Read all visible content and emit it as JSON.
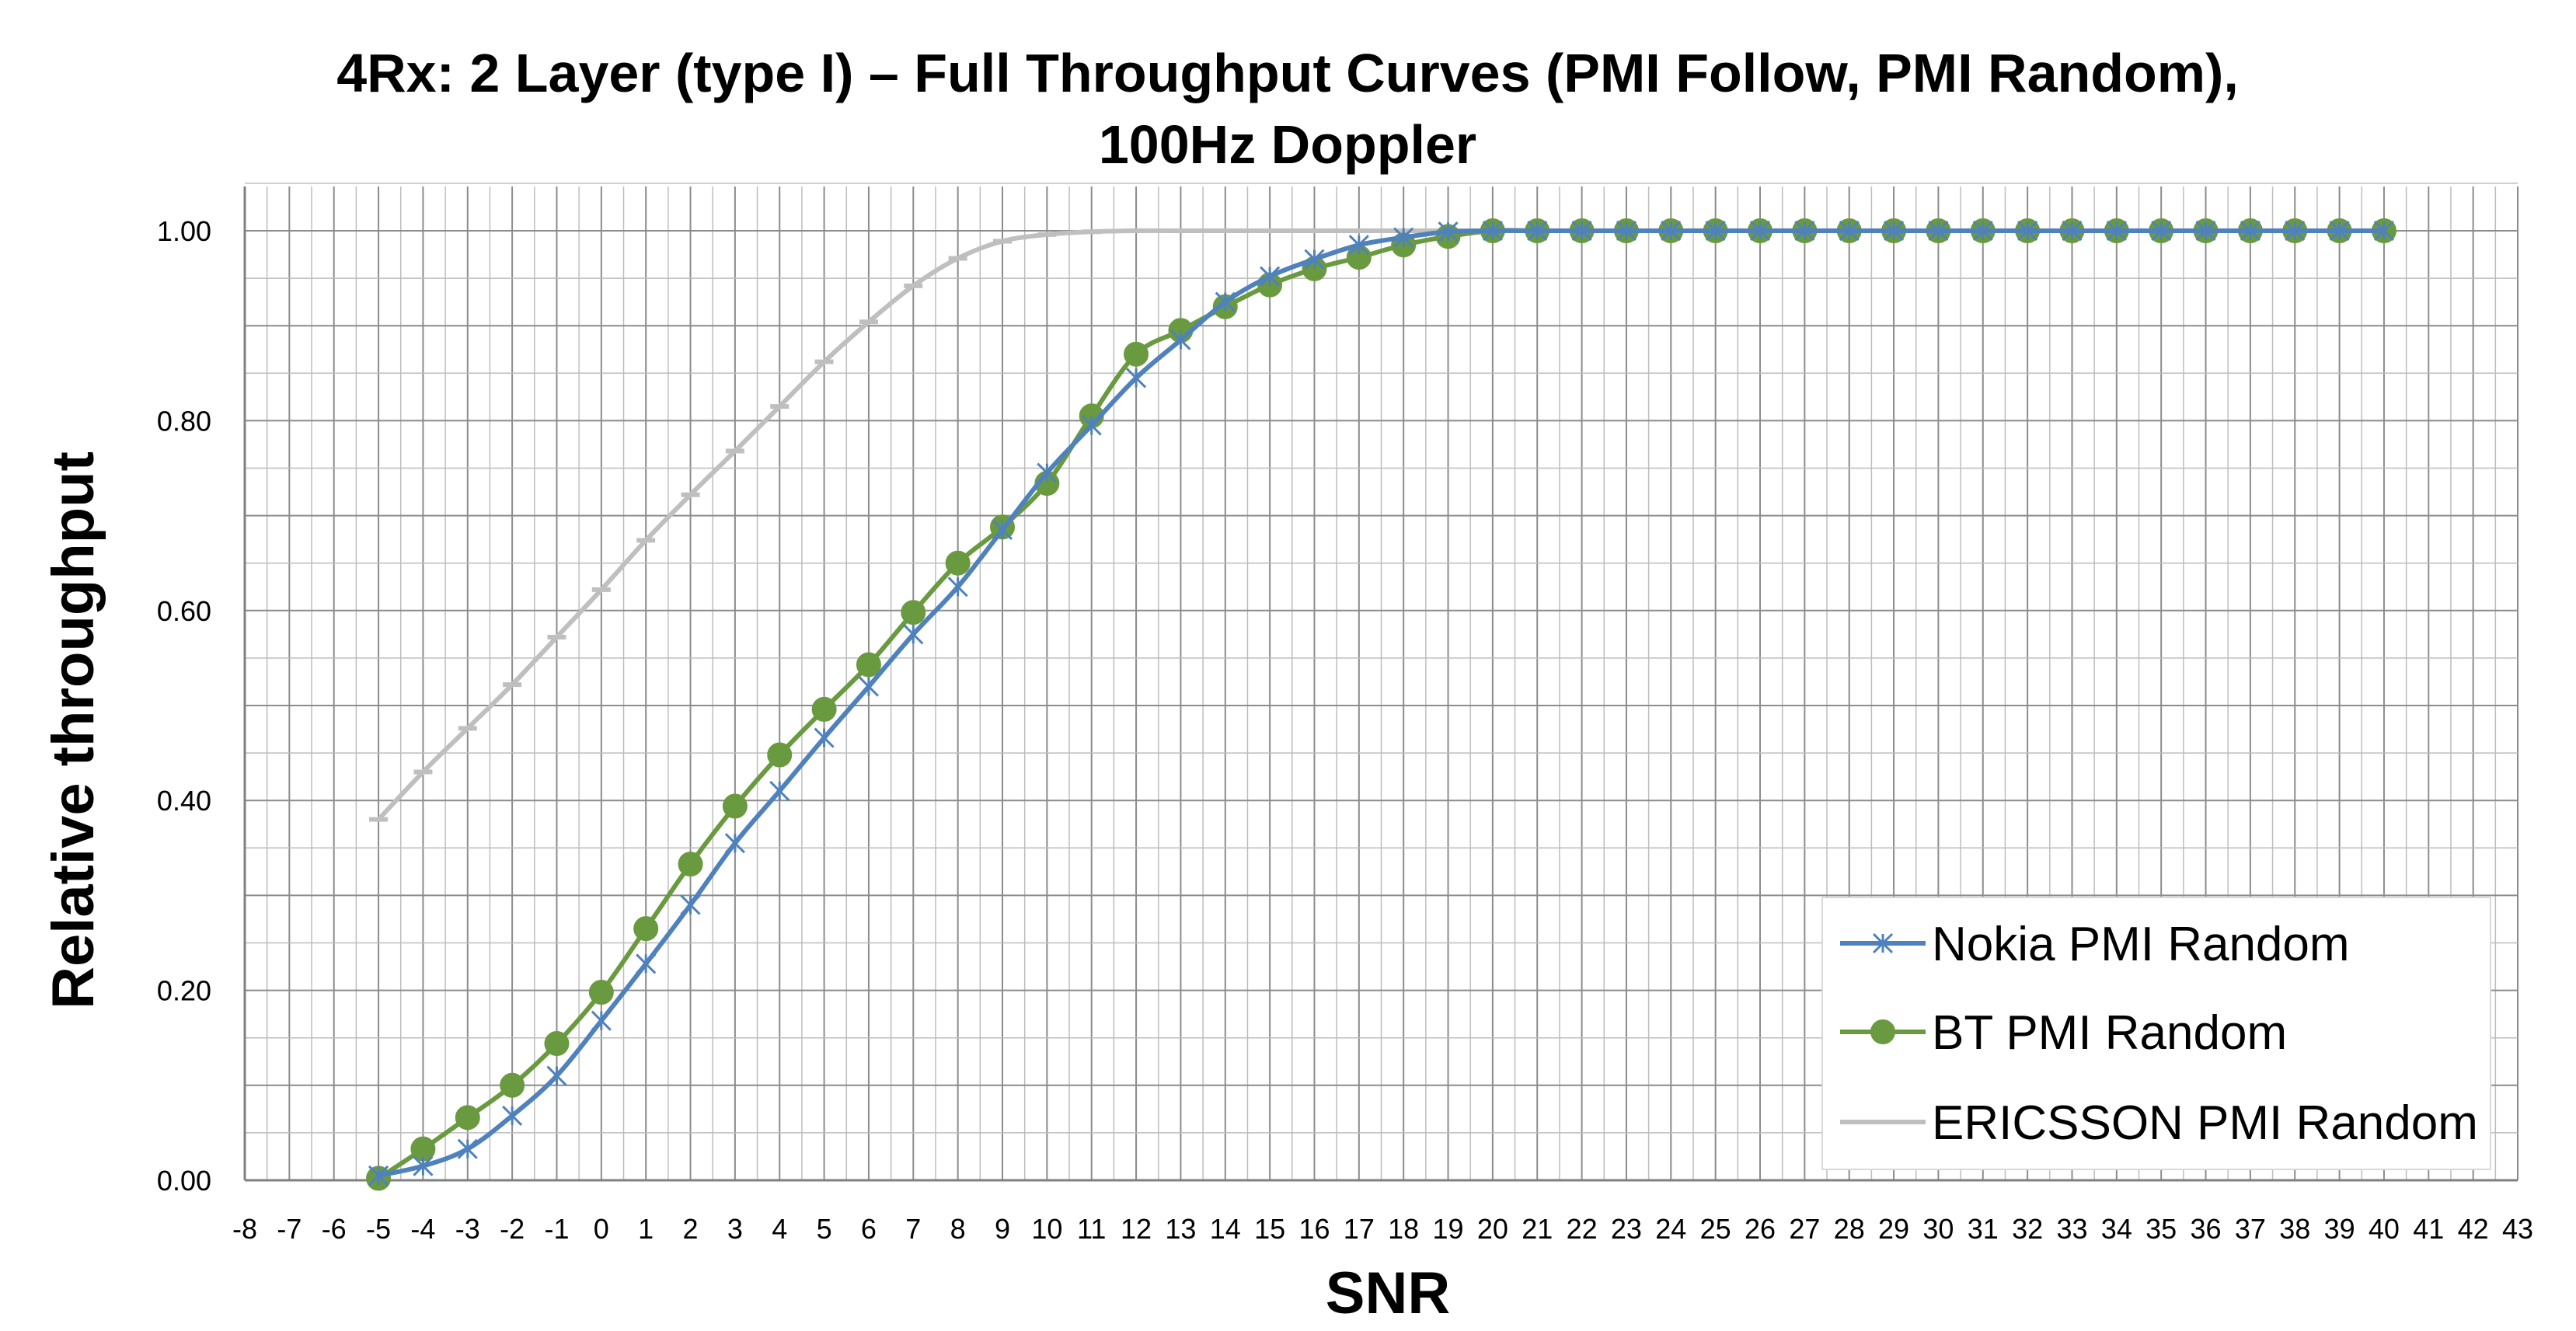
{
  "chart_data": {
    "type": "line",
    "title_lines": [
      "4Rx: 2 Layer (type I) – Full Throughput Curves (PMI Follow, PMI Random),",
      "100Hz Doppler"
    ],
    "xlabel": "SNR",
    "ylabel": "Relative throughput",
    "xlim": [
      -8,
      43
    ],
    "ylim": [
      0,
      1.05
    ],
    "x_ticks": [
      -8,
      -7,
      -6,
      -5,
      -4,
      -3,
      -2,
      -1,
      0,
      1,
      2,
      3,
      4,
      5,
      6,
      7,
      8,
      9,
      10,
      11,
      12,
      13,
      14,
      15,
      16,
      17,
      18,
      19,
      20,
      21,
      22,
      23,
      24,
      25,
      26,
      27,
      28,
      29,
      30,
      31,
      32,
      33,
      34,
      35,
      36,
      37,
      38,
      39,
      40,
      41,
      42,
      43
    ],
    "y_ticks": [
      0,
      0.2,
      0.4,
      0.6,
      0.8,
      1.0
    ],
    "y_tick_labels": [
      "0.00",
      "0.20",
      "0.40",
      "0.60",
      "0.80",
      "1.00"
    ],
    "grid": true,
    "legend_position": "bottom-right",
    "x": [
      -5,
      -4,
      -3,
      -2,
      -1,
      0,
      1,
      2,
      3,
      4,
      5,
      6,
      7,
      8,
      9,
      10,
      11,
      12,
      13,
      14,
      15,
      16,
      17,
      18,
      19,
      20,
      21,
      22,
      23,
      24,
      25,
      26,
      27,
      28,
      29,
      30,
      31,
      32,
      33,
      34,
      35,
      36,
      37,
      38,
      39,
      40
    ],
    "series": [
      {
        "name": "Nokia PMI Random",
        "color": "#4f81bd",
        "marker": "asterisk",
        "values": [
          0.005,
          0.015,
          0.033,
          0.068,
          0.11,
          0.168,
          0.228,
          0.29,
          0.355,
          0.41,
          0.466,
          0.52,
          0.575,
          0.625,
          0.685,
          0.745,
          0.795,
          0.845,
          0.885,
          0.925,
          0.952,
          0.97,
          0.985,
          0.993,
          0.999,
          1,
          1,
          1,
          1,
          1,
          1,
          1,
          1,
          1,
          1,
          1,
          1,
          1,
          1,
          1,
          1,
          1,
          1,
          1,
          1,
          1
        ]
      },
      {
        "name": "BT PMI Random",
        "color": "#6a9a3f",
        "marker": "circle",
        "values": [
          0.002,
          0.033,
          0.066,
          0.1,
          0.144,
          0.198,
          0.265,
          0.333,
          0.394,
          0.448,
          0.496,
          0.543,
          0.598,
          0.65,
          0.688,
          0.734,
          0.805,
          0.87,
          0.895,
          0.92,
          0.943,
          0.96,
          0.972,
          0.985,
          0.994,
          1,
          1,
          1,
          1,
          1,
          1,
          1,
          1,
          1,
          1,
          1,
          1,
          1,
          1,
          1,
          1,
          1,
          1,
          1,
          1,
          1
        ]
      },
      {
        "name": "ERICSSON PMI Random",
        "color": "#bfbfbf",
        "marker": "dash",
        "values": [
          0.38,
          0.43,
          0.476,
          0.522,
          0.572,
          0.622,
          0.674,
          0.722,
          0.768,
          0.815,
          0.862,
          0.904,
          0.942,
          0.971,
          0.989,
          0.996,
          0.999,
          1,
          1,
          1,
          1,
          1,
          1,
          1,
          1,
          1,
          1,
          1,
          1,
          1,
          1,
          1,
          1,
          1,
          1,
          1,
          1,
          1,
          1,
          1,
          1,
          1,
          1,
          1,
          1,
          1
        ]
      }
    ]
  }
}
